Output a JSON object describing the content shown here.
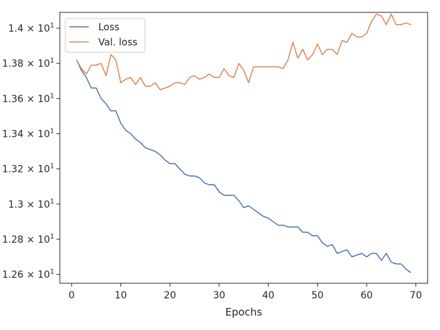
{
  "chart_data": {
    "type": "line",
    "title": "",
    "xlabel": "Epochs",
    "ylabel": "",
    "xlim": [
      -2.4,
      72.4
    ],
    "ylim": [
      12.55,
      14.09
    ],
    "grid": false,
    "legend_position": "top-left",
    "x_ticks": [
      0,
      10,
      20,
      30,
      40,
      50,
      60,
      70
    ],
    "x_tick_labels": [
      "0",
      "10",
      "20",
      "30",
      "40",
      "50",
      "60",
      "70"
    ],
    "y_ticks": [
      12.6,
      12.8,
      13.0,
      13.2,
      13.4,
      13.6,
      13.8,
      14.0
    ],
    "y_tick_labels": [
      {
        "mant": "1.26",
        "exp": "1"
      },
      {
        "mant": "1.28",
        "exp": "1"
      },
      {
        "mant": "1.3",
        "exp": "1"
      },
      {
        "mant": "1.32",
        "exp": "1"
      },
      {
        "mant": "1.34",
        "exp": "1"
      },
      {
        "mant": "1.36",
        "exp": "1"
      },
      {
        "mant": "1.38",
        "exp": "1"
      },
      {
        "mant": "1.4",
        "exp": "1"
      }
    ],
    "x": [
      1,
      2,
      3,
      4,
      5,
      6,
      7,
      8,
      9,
      10,
      11,
      12,
      13,
      14,
      15,
      16,
      17,
      18,
      19,
      20,
      21,
      22,
      23,
      24,
      25,
      26,
      27,
      28,
      29,
      30,
      31,
      32,
      33,
      34,
      35,
      36,
      37,
      38,
      39,
      40,
      41,
      42,
      43,
      44,
      45,
      46,
      47,
      48,
      49,
      50,
      51,
      52,
      53,
      54,
      55,
      56,
      57,
      58,
      59,
      60,
      61,
      62,
      63,
      64,
      65,
      66,
      67,
      68,
      69
    ],
    "series": [
      {
        "name": "Loss",
        "color": "#4c72b0",
        "values": [
          13.82,
          13.76,
          13.72,
          13.66,
          13.66,
          13.6,
          13.57,
          13.53,
          13.53,
          13.46,
          13.42,
          13.4,
          13.37,
          13.35,
          13.32,
          13.31,
          13.3,
          13.28,
          13.25,
          13.23,
          13.23,
          13.2,
          13.17,
          13.16,
          13.16,
          13.15,
          13.12,
          13.11,
          13.11,
          13.07,
          13.05,
          13.05,
          13.05,
          13.02,
          12.98,
          12.99,
          12.97,
          12.95,
          12.93,
          12.92,
          12.9,
          12.88,
          12.88,
          12.87,
          12.87,
          12.87,
          12.84,
          12.84,
          12.82,
          12.82,
          12.78,
          12.76,
          12.77,
          12.72,
          12.73,
          12.74,
          12.7,
          12.71,
          12.72,
          12.7,
          12.72,
          12.72,
          12.68,
          12.72,
          12.67,
          12.66,
          12.66,
          12.63,
          12.61
        ]
      },
      {
        "name": "Val. loss",
        "color": "#dd8452",
        "values": [
          13.82,
          13.77,
          13.74,
          13.79,
          13.79,
          13.8,
          13.73,
          13.85,
          13.82,
          13.69,
          13.71,
          13.72,
          13.68,
          13.72,
          13.67,
          13.67,
          13.69,
          13.65,
          13.66,
          13.67,
          13.69,
          13.69,
          13.68,
          13.72,
          13.73,
          13.71,
          13.72,
          13.74,
          13.72,
          13.72,
          13.77,
          13.73,
          13.72,
          13.8,
          13.76,
          13.69,
          13.78,
          13.78,
          13.78,
          13.78,
          13.78,
          13.78,
          13.77,
          13.82,
          13.92,
          13.83,
          13.88,
          13.82,
          13.85,
          13.91,
          13.85,
          13.88,
          13.88,
          13.85,
          13.93,
          13.92,
          13.97,
          13.95,
          13.95,
          13.97,
          14.04,
          14.08,
          14.07,
          14.02,
          14.08,
          14.02,
          14.02,
          14.03,
          14.02
        ]
      }
    ]
  }
}
